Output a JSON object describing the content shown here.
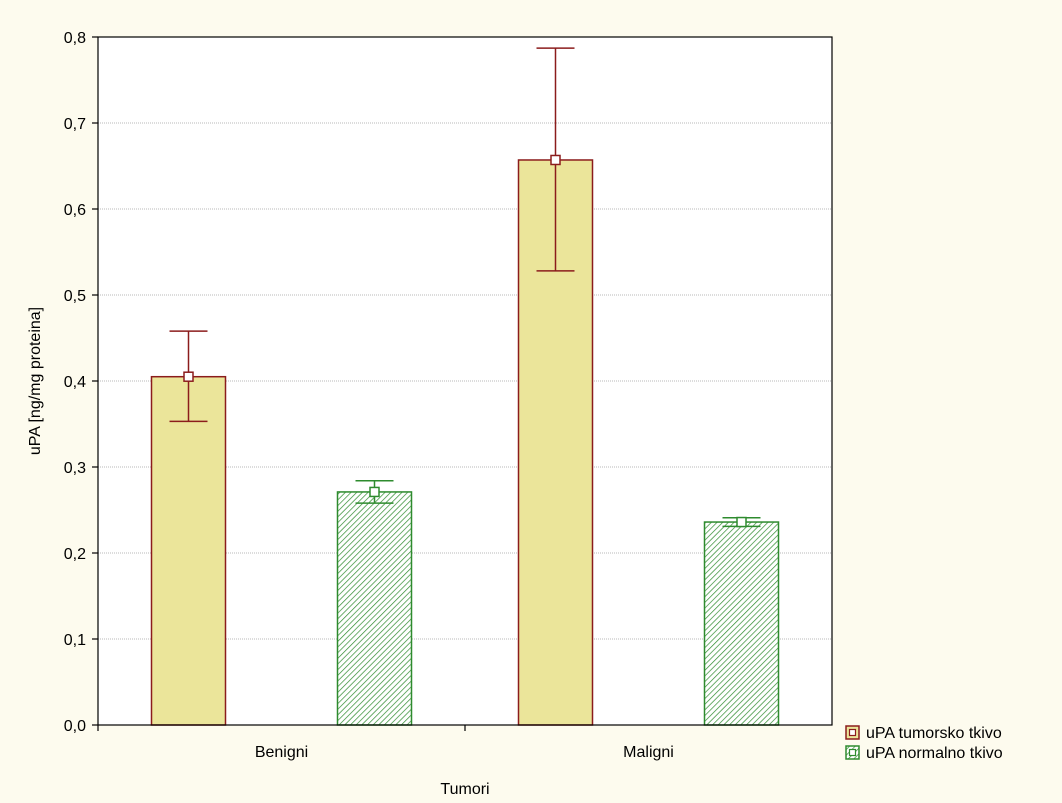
{
  "chart_data": {
    "type": "bar",
    "xlabel": "Tumori",
    "ylabel": "uPA [ng/mg proteina]",
    "categories": [
      "Benigni",
      "Maligni"
    ],
    "ylim": [
      0,
      0.8
    ],
    "yticks": [
      "0,0",
      "0,1",
      "0,2",
      "0,3",
      "0,4",
      "0,5",
      "0,6",
      "0,7",
      "0,8"
    ],
    "grid": true,
    "legend_position": "bottom-right, outside plot",
    "series": [
      {
        "name": "uPA tumorsko tkivo",
        "values": [
          0.405,
          0.657
        ],
        "err_low": [
          0.353,
          0.528
        ],
        "err_high": [
          0.458,
          0.787
        ],
        "fill": "#ebe59a",
        "stroke": "#8b1c1c",
        "pattern": "solid"
      },
      {
        "name": "uPA normalno tkivo",
        "values": [
          0.271,
          0.236
        ],
        "err_low": [
          0.258,
          0.231
        ],
        "err_high": [
          0.284,
          0.241
        ],
        "fill": "#ffffff",
        "stroke": "#2e8b2e",
        "pattern": "hatched"
      }
    ]
  }
}
